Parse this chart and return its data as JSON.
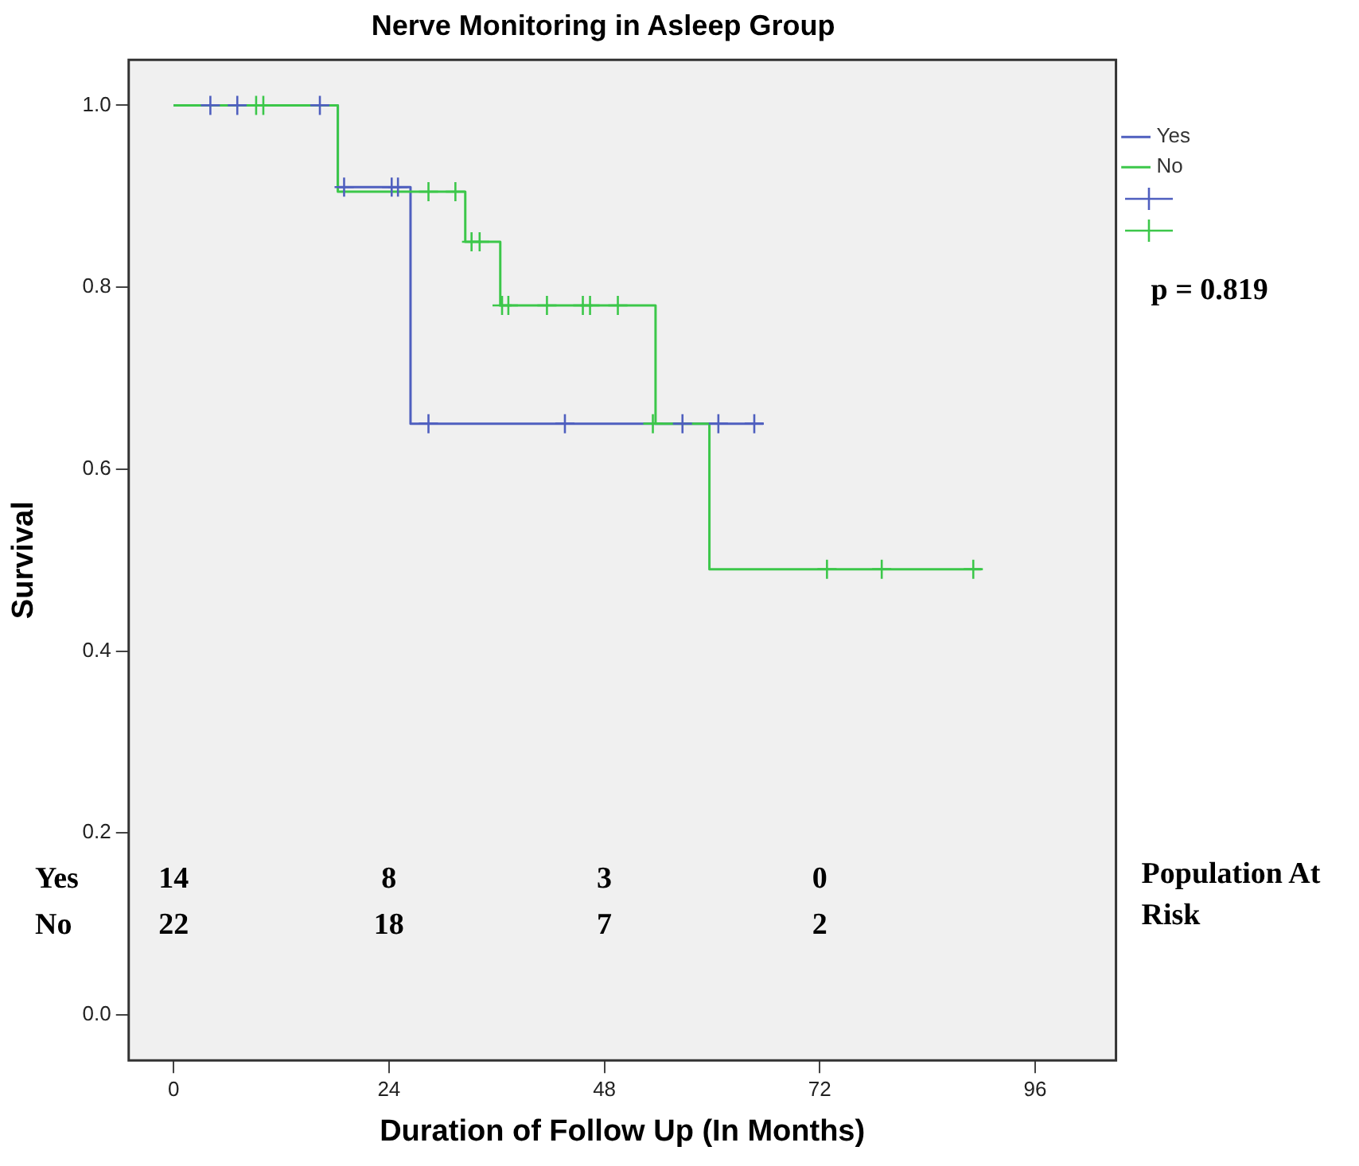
{
  "chart_data": {
    "type": "step",
    "title": "Nerve Monitoring in Asleep Group",
    "xlabel": "Duration of Follow Up (In Months)",
    "ylabel": "Survival",
    "xlim": [
      -5,
      105
    ],
    "xticks": [
      0,
      24,
      48,
      72,
      96
    ],
    "ylim": [
      -0.05,
      1.05
    ],
    "yticks": [
      {
        "value": 0,
        "label": "0.0"
      },
      {
        "value": 0.2,
        "label": "0.2"
      },
      {
        "value": 0.4,
        "label": "0.4"
      },
      {
        "value": 0.6,
        "label": "0.6"
      },
      {
        "value": 0.8,
        "label": "0.8"
      },
      {
        "value": 1,
        "label": "1.0"
      }
    ],
    "grid": false,
    "legend": "top right",
    "series": [
      {
        "name": "Yes",
        "color": "#4f5fbf",
        "x": [
          0,
          18.3,
          26.4,
          65.7
        ],
        "values": [
          1,
          0.91,
          0.65,
          0.65
        ]
      },
      {
        "name": "No",
        "color": "#3cc74a",
        "x": [
          0,
          18.3,
          32.5,
          36.4,
          53.7,
          59.7,
          90.0
        ],
        "values": [
          1,
          0.905,
          0.85,
          0.78,
          0.65,
          0.49,
          0.49
        ]
      },
      {
        "type": "scatter",
        "marker": "cross",
        "color": "#4f5fbf",
        "x": [
          4.1,
          7.1,
          16.3,
          19.0,
          24.3,
          25.0,
          28.4,
          43.6,
          56.7,
          60.7,
          64.7
        ],
        "values": [
          1,
          1,
          1,
          0.91,
          0.91,
          0.91,
          0.65,
          0.65,
          0.65,
          0.65,
          0.65
        ]
      },
      {
        "type": "scatter",
        "marker": "cross",
        "color": "#3cc74a",
        "x": [
          9.2,
          10.0,
          28.4,
          31.4,
          33.2,
          34.1,
          36.6,
          37.3,
          41.6,
          45.6,
          46.4,
          49.5,
          53.4,
          72.8,
          78.9,
          89.1
        ],
        "values": [
          1,
          1,
          0.905,
          0.905,
          0.85,
          0.85,
          0.78,
          0.78,
          0.78,
          0.78,
          0.78,
          0.78,
          0.65,
          0.49,
          0.49,
          0.49
        ]
      }
    ],
    "annotations": [
      "p = 0.819",
      "Population At Risk",
      "Yes",
      "14",
      "8",
      "3",
      "0",
      "No",
      "22",
      "18",
      "7",
      "2"
    ]
  }
}
